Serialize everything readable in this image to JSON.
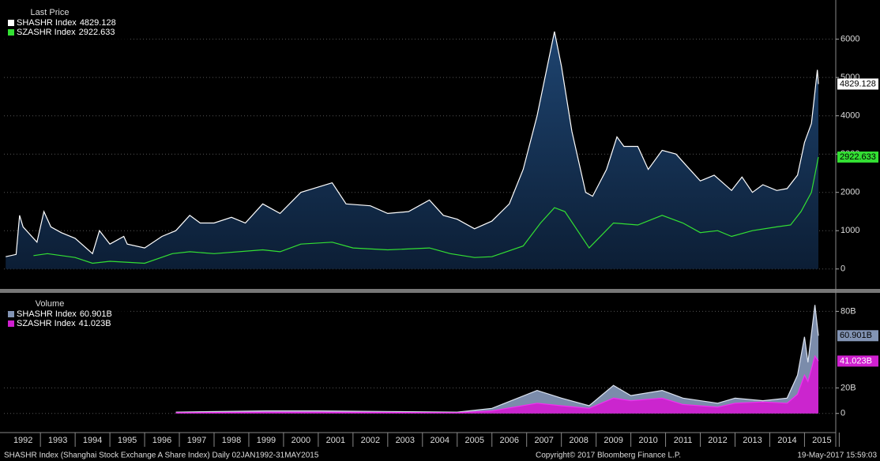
{
  "chart_data": [
    {
      "type": "area",
      "title": "Last Price",
      "xlim": [
        1991.95,
        2015.9
      ],
      "ylim": [
        -500,
        6900
      ],
      "yticks": [
        0,
        1000,
        2000,
        3000,
        4000,
        5000,
        6000
      ],
      "grid": true,
      "series": [
        {
          "name": "SHASHR Index",
          "color": "#ffffff",
          "fill": "#15345a",
          "last_value_label": "4829.128",
          "x": [
            1992.0,
            1992.3,
            1992.4,
            1992.5,
            1992.9,
            1993.1,
            1993.3,
            1993.6,
            1994.0,
            1994.5,
            1994.7,
            1995.0,
            1995.4,
            1995.5,
            1996.0,
            1996.5,
            1996.9,
            1997.3,
            1997.6,
            1998.0,
            1998.5,
            1998.9,
            1999.4,
            1999.9,
            2000.5,
            2001.4,
            2001.8,
            2002.5,
            2003.0,
            2003.6,
            2004.2,
            2004.6,
            2005.0,
            2005.5,
            2006.0,
            2006.5,
            2006.9,
            2007.3,
            2007.8,
            2008.0,
            2008.3,
            2008.7,
            2008.9,
            2009.3,
            2009.6,
            2009.8,
            2010.2,
            2010.5,
            2010.9,
            2011.3,
            2011.6,
            2012.0,
            2012.4,
            2012.9,
            2013.2,
            2013.5,
            2013.8,
            2014.2,
            2014.5,
            2014.8,
            2015.0,
            2015.2,
            2015.37,
            2015.4
          ],
          "values": [
            320,
            380,
            1400,
            1100,
            700,
            1500,
            1100,
            950,
            800,
            400,
            1000,
            650,
            850,
            650,
            550,
            850,
            1000,
            1400,
            1200,
            1200,
            1350,
            1200,
            1700,
            1450,
            2000,
            2250,
            1700,
            1650,
            1450,
            1500,
            1800,
            1400,
            1300,
            1050,
            1250,
            1700,
            2600,
            4000,
            6200,
            5300,
            3600,
            2000,
            1900,
            2600,
            3450,
            3200,
            3200,
            2600,
            3100,
            3000,
            2700,
            2300,
            2450,
            2050,
            2400,
            2000,
            2200,
            2050,
            2100,
            2450,
            3300,
            3800,
            5200,
            4829.128
          ]
        },
        {
          "name": "SZASHR Index",
          "color": "#33e033",
          "last_value_label": "2922.633",
          "x": [
            1992.8,
            1993.2,
            1994.0,
            1994.5,
            1995.0,
            1996.0,
            1996.8,
            1997.3,
            1998.0,
            1999.4,
            1999.9,
            2000.5,
            2001.4,
            2002.0,
            2003.0,
            2004.2,
            2004.8,
            2005.5,
            2006.0,
            2006.9,
            2007.4,
            2007.8,
            2008.1,
            2008.8,
            2009.5,
            2010.2,
            2010.9,
            2011.5,
            2012.0,
            2012.5,
            2012.9,
            2013.5,
            2014.2,
            2014.6,
            2014.9,
            2015.2,
            2015.4
          ],
          "values": [
            350,
            400,
            300,
            150,
            200,
            150,
            400,
            450,
            400,
            500,
            450,
            650,
            700,
            550,
            500,
            550,
            400,
            300,
            320,
            600,
            1200,
            1600,
            1500,
            550,
            1200,
            1150,
            1400,
            1200,
            950,
            1000,
            850,
            1000,
            1100,
            1150,
            1500,
            2000,
            2922.633
          ]
        }
      ]
    },
    {
      "type": "area",
      "title": "Volume",
      "xlim": [
        1991.95,
        2015.9
      ],
      "ylim": [
        -15,
        92
      ],
      "yticks": [
        0,
        {
          "value": 20,
          "label": "20B"
        },
        {
          "value": 80,
          "label": "80B"
        }
      ],
      "grid": true,
      "xticks": [
        1992,
        1993,
        1994,
        1995,
        1996,
        1997,
        1998,
        1999,
        2000,
        2001,
        2002,
        2003,
        2004,
        2005,
        2006,
        2007,
        2008,
        2009,
        2010,
        2011,
        2012,
        2013,
        2014,
        2015
      ],
      "series": [
        {
          "name": "SHASHR Index",
          "color": "#dde4f0",
          "fill": "#8294b4",
          "last_value_label": "60.901B",
          "x": [
            1996.9,
            1999.5,
            2001.0,
            2003.0,
            2005.0,
            2006.0,
            2007.3,
            2008.0,
            2008.8,
            2009.5,
            2010.0,
            2010.9,
            2011.5,
            2012.5,
            2013.0,
            2013.8,
            2014.5,
            2014.8,
            2015.0,
            2015.1,
            2015.3,
            2015.4
          ],
          "values": [
            1,
            2,
            2,
            1.5,
            1,
            4,
            18,
            12,
            6,
            22,
            14,
            18,
            12,
            8,
            12,
            10,
            12,
            30,
            60,
            40,
            85,
            60.901
          ]
        },
        {
          "name": "SZASHR Index",
          "color": "#f030f0",
          "fill": "#d020d0",
          "last_value_label": "41.023B",
          "x": [
            1996.9,
            1999.5,
            2001.0,
            2003.0,
            2005.0,
            2006.0,
            2007.3,
            2008.0,
            2008.8,
            2009.5,
            2010.0,
            2010.9,
            2011.5,
            2012.5,
            2013.0,
            2013.8,
            2014.5,
            2014.8,
            2015.0,
            2015.1,
            2015.3,
            2015.4
          ],
          "values": [
            0.5,
            1,
            1,
            0.8,
            0.6,
            2,
            8,
            6,
            4,
            12,
            10,
            12,
            7,
            5,
            8,
            9,
            8,
            15,
            30,
            25,
            45,
            41.023
          ]
        }
      ]
    }
  ],
  "footer": {
    "left": "SHASHR Index (Shanghai Stock Exchange A Share Index)  Daily 02JAN1992-31MAY2015",
    "center": "Copyright© 2017 Bloomberg Finance L.P.",
    "right": "19-May-2017 15:59:03"
  }
}
